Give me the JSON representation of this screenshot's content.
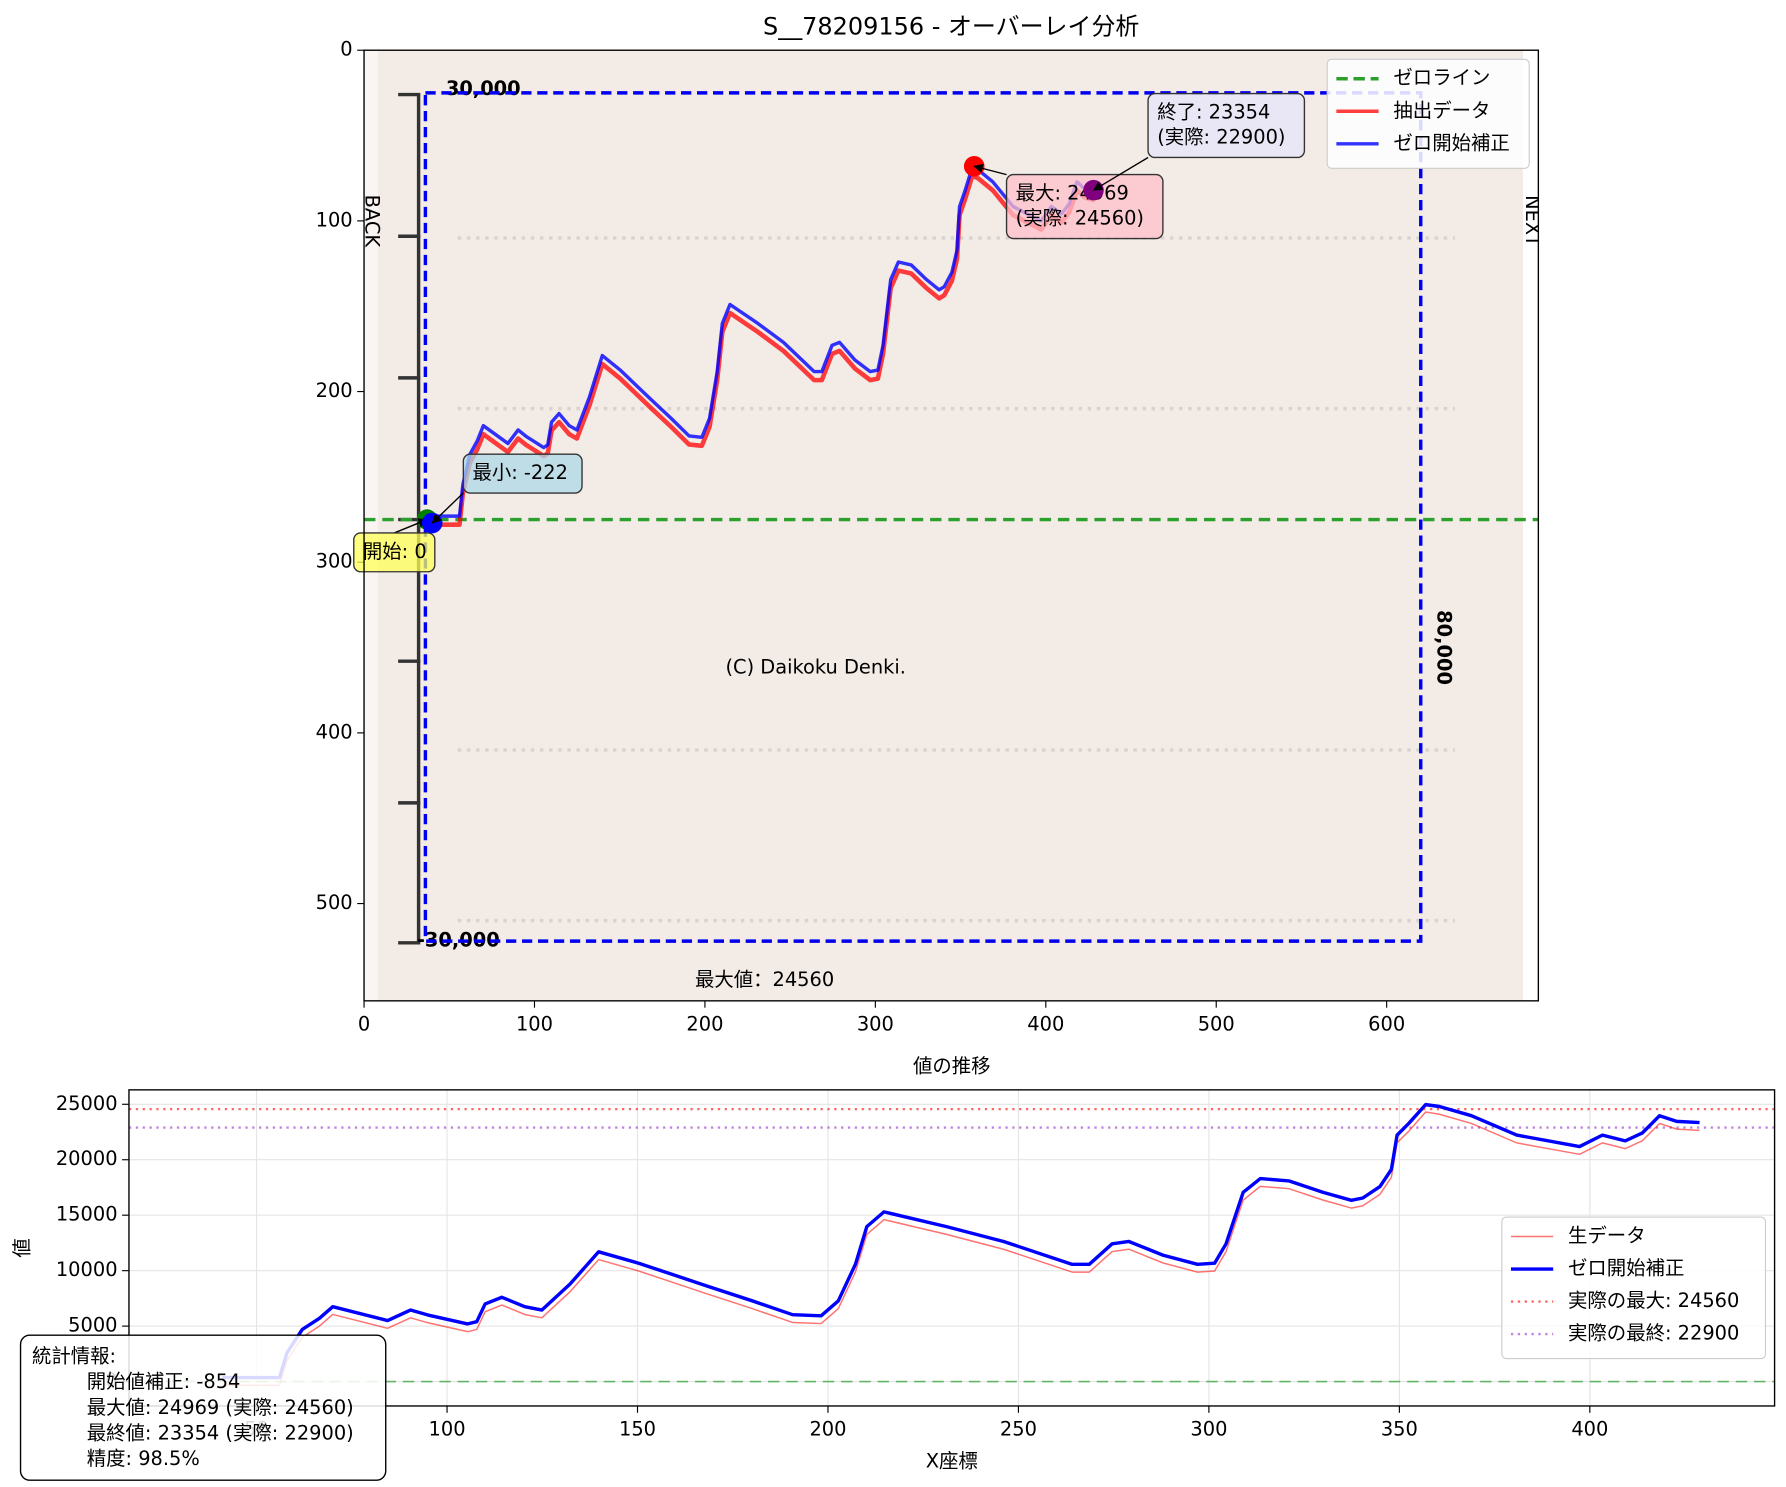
{
  "chart_data": [
    {
      "type": "line",
      "title": "S__78209156 - オーバーレイ分析",
      "xlim": [
        0,
        689
      ],
      "ylim": [
        557,
        0
      ],
      "xticks": [
        0,
        100,
        200,
        300,
        400,
        500,
        600
      ],
      "yticks": [
        0,
        100,
        200,
        300,
        400,
        500
      ],
      "grid": false,
      "legend": "upper right",
      "image_texts": {
        "top_scale": "30,000",
        "bottom_scale": "-30,000",
        "right_scale": "80,000",
        "watermark": "(C) Daikoku Denki.",
        "caption": "最大値：24560",
        "back": "BACK",
        "next": "NEXT"
      },
      "region": {
        "x": [
          36,
          620
        ],
        "y": [
          25,
          522
        ],
        "color": "#0000ee"
      },
      "zero_line": {
        "name": "ゼロライン",
        "value": 275,
        "color": "#2ca02c"
      },
      "x": [
        41,
        56,
        58,
        62,
        66.5,
        70,
        84.4,
        90.4,
        95,
        105.4,
        107.8,
        110,
        114.4,
        120.4,
        124.9,
        132.3,
        139.8,
        150.3,
        159.3,
        168.3,
        180.2,
        190.7,
        198.2,
        202.7,
        207.2,
        210.2,
        214.7,
        231.1,
        246.1,
        264.1,
        268.6,
        274.6,
        279,
        288,
        297,
        301.5,
        304.5,
        309,
        313.5,
        321,
        330,
        337.4,
        340.4,
        344.9,
        347.9,
        349.4,
        352.4,
        356.9,
        360.5,
        368.9,
        380.8,
        397.3,
        403.3,
        409.3,
        413.8,
        418.3,
        422.8,
        428.8
      ],
      "series": [
        {
          "name": "抽出データ",
          "color": "#ff0000",
          "values": [
            278,
            278,
            259.4,
            242,
            233.7,
            225,
            235.4,
            227.5,
            231.2,
            237.8,
            236.2,
            222.9,
            217.9,
            225,
            227.5,
            208,
            183.9,
            192.4,
            201,
            209.6,
            220.7,
            231,
            231.8,
            220.7,
            193.3,
            165.1,
            154,
            165.1,
            176.2,
            193.3,
            193.3,
            177.9,
            176.2,
            186.5,
            193.3,
            192.4,
            177.9,
            139.4,
            129.1,
            130.8,
            139.4,
            145.4,
            143.6,
            135.1,
            122.3,
            96.6,
            88,
            73.5,
            75.2,
            82.1,
            96.6,
            105.1,
            96.6,
            100.9,
            94.9,
            82.1,
            86.3,
            88
          ]
        },
        {
          "name": "ゼロ開始補正",
          "color": "#0000ff",
          "values": [
            273,
            273,
            254.4,
            237,
            228.7,
            220,
            230.4,
            222.5,
            226.2,
            232.8,
            231.2,
            217.9,
            212.9,
            220,
            222.5,
            203,
            178.9,
            187.4,
            196,
            204.6,
            215.7,
            226,
            226.8,
            215.7,
            188.3,
            160.1,
            149,
            160.1,
            171.2,
            188.3,
            188.3,
            172.9,
            171.2,
            181.5,
            188.3,
            187.4,
            172.9,
            134.4,
            124.1,
            125.8,
            134.4,
            140.4,
            138.6,
            130.1,
            117.3,
            91.6,
            83,
            68.5,
            70.2,
            77.1,
            91.6,
            100.1,
            91.6,
            95.9,
            89.9,
            77.1,
            81.3,
            83
          ]
        }
      ],
      "annotations": [
        {
          "x": 37,
          "y": 275,
          "color": "#008000",
          "lines": [
            "開始: 0"
          ]
        },
        {
          "x": 40,
          "y": 277,
          "color": "#0000ff",
          "lines": [
            "最小: -222"
          ]
        },
        {
          "x": 358,
          "y": 68,
          "color": "#ff0000",
          "lines": [
            "最大: 24969",
            "(実際: 24560)"
          ]
        },
        {
          "x": 428,
          "y": 82,
          "color": "#800080",
          "lines": [
            "終了: 23354",
            "(実際: 22900)"
          ]
        }
      ]
    },
    {
      "type": "line",
      "title": "値の推移",
      "x_label": "X座標",
      "y_label": "値",
      "xlim": [
        16.5,
        448.5
      ],
      "ylim": [
        -2200,
        26300
      ],
      "xticks": [
        50,
        100,
        150,
        200,
        250,
        300,
        350,
        400
      ],
      "yticks": [
        0,
        5000,
        10000,
        15000,
        20000,
        25000
      ],
      "grid": true,
      "legend": "center right",
      "zero_line": {
        "value": 0,
        "color": "#2ca02c"
      },
      "hlines": [
        {
          "name": "実際の最大: 24560",
          "value": 24560,
          "color": "#ff0000"
        },
        {
          "name": "実際の最終: 22900",
          "value": 22900,
          "color": "#9932cc"
        }
      ],
      "x": [
        41,
        56,
        58,
        62,
        66.5,
        70,
        84.4,
        90.4,
        95,
        105.4,
        107.8,
        110,
        114.4,
        120.4,
        124.9,
        132.3,
        139.8,
        150.3,
        159.3,
        168.3,
        180.2,
        190.7,
        198.2,
        202.7,
        207.2,
        210.2,
        214.7,
        231.1,
        246.1,
        264.1,
        268.6,
        274.6,
        279,
        288,
        297,
        301.5,
        304.5,
        309,
        313.5,
        321,
        330,
        337.4,
        340.4,
        344.9,
        347.9,
        349.4,
        352.4,
        356.9,
        360.5,
        368.9,
        380.8,
        397.3,
        403.3,
        409.3,
        413.8,
        418.3,
        422.8,
        428.8
      ],
      "series": [
        {
          "name": "生データ",
          "color": "#ff0000",
          "values": [
            -340,
            -340,
            1900,
            4000,
            5000,
            6050,
            4800,
            5750,
            5300,
            4500,
            4700,
            6300,
            6900,
            6050,
            5750,
            8100,
            11000,
            9970,
            8940,
            7900,
            6570,
            5330,
            5230,
            6570,
            9870,
            13270,
            14600,
            13270,
            11930,
            9870,
            9870,
            11720,
            11930,
            10690,
            9870,
            9970,
            11720,
            16360,
            17600,
            17390,
            16360,
            15640,
            15850,
            16880,
            18420,
            21520,
            22550,
            24300,
            24100,
            23270,
            21520,
            20490,
            21520,
            21000,
            21720,
            23270,
            22760,
            22650
          ]
        },
        {
          "name": "ゼロ開始補正",
          "color": "#0000ff",
          "values": [
            360,
            360,
            2600,
            4700,
            5700,
            6750,
            5500,
            6450,
            6000,
            5200,
            5400,
            7000,
            7600,
            6750,
            6450,
            8800,
            11700,
            10670,
            9640,
            8600,
            7270,
            6030,
            5930,
            7270,
            10570,
            13970,
            15300,
            13970,
            12630,
            10570,
            10570,
            12420,
            12630,
            11390,
            10570,
            10670,
            12420,
            17060,
            18300,
            18090,
            17060,
            16340,
            16550,
            17580,
            19120,
            22220,
            23250,
            24969,
            24800,
            23970,
            22220,
            21190,
            22220,
            21700,
            22420,
            23970,
            23460,
            23354
          ]
        }
      ],
      "stats_text": [
        "統計情報:",
        "開始値補正: -854",
        "最大値: 24969 (実際: 24560)",
        "最終値: 23354 (実際: 22900)",
        "精度: 98.5%"
      ]
    }
  ]
}
